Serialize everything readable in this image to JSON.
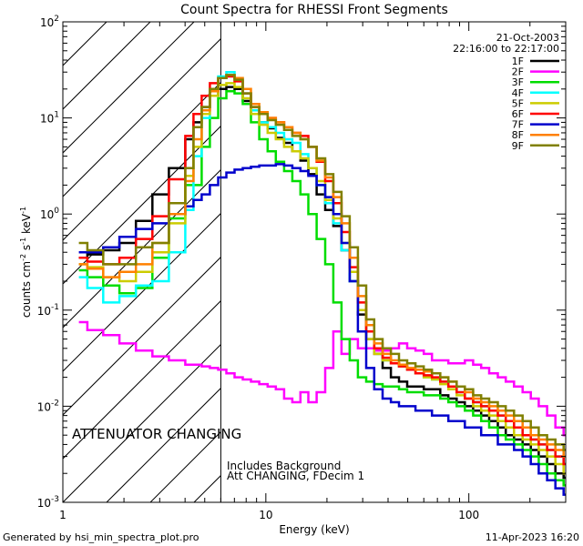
{
  "chart_data": {
    "type": "line",
    "title": "Count Spectra for RHESSI Front Segments",
    "xlabel": "Energy (keV)",
    "ylabel": {
      "base": "counts cm",
      "exp1": "-2",
      "mid": " s",
      "exp2": "-1",
      "mid2": " keV",
      "exp3": "-1"
    },
    "xscale": "log",
    "yscale": "log",
    "xlim": [
      1,
      300
    ],
    "ylim": [
      0.001,
      100
    ],
    "x_ticks": [
      {
        "value": 1,
        "label": "1"
      },
      {
        "value": 10,
        "label": "10"
      },
      {
        "value": 100,
        "label": "100"
      }
    ],
    "y_ticks": [
      {
        "value": 0.001,
        "base": "10",
        "exp": "-3"
      },
      {
        "value": 0.01,
        "base": "10",
        "exp": "-2"
      },
      {
        "value": 0.1,
        "base": "10",
        "exp": "-1"
      },
      {
        "value": 1,
        "base": "10",
        "exp": "0"
      },
      {
        "value": 10,
        "base": "10",
        "exp": "1"
      },
      {
        "value": 100,
        "base": "10",
        "exp": "2"
      }
    ],
    "date_label": "21-Oct-2003",
    "time_label": "22:16:00 to 22:17:00",
    "attenuator_label": "ATTENUATOR CHANGING",
    "attenuator_color": "#ff0000",
    "attenuator_edge_keV": 6.0,
    "hatch_region_keV": [
      1,
      6.0
    ],
    "notes": [
      "Includes Background",
      "Att CHANGING, FDecim 1"
    ],
    "footer_left": "Generated by hsi_min_spectra_plot.pro",
    "footer_right": "11-Apr-2023 16:20",
    "energy_bins": [
      1.2,
      1.32,
      1.44,
      1.58,
      1.73,
      1.9,
      2.09,
      2.29,
      2.52,
      2.76,
      3.03,
      3.33,
      3.65,
      4.01,
      4.4,
      4.83,
      5.3,
      5.82,
      6.39,
      7.01,
      7.7,
      8.45,
      9.28,
      10.2,
      11.2,
      12.3,
      13.5,
      14.8,
      16.2,
      17.8,
      19.6,
      21.5,
      23.6,
      25.9,
      28.4,
      31.2,
      34.2,
      37.6,
      41.3,
      45.3,
      49.7,
      54.6,
      60,
      65.8,
      72.3,
      79.3,
      87.1,
      95.6,
      105,
      115,
      126,
      139,
      152,
      167,
      184,
      202,
      221,
      243,
      267,
      293
    ],
    "series": [
      {
        "name": "1F",
        "color": "#000000",
        "values": [
          0.35,
          0.38,
          0.38,
          0.42,
          0.42,
          0.5,
          0.5,
          0.85,
          0.85,
          1.6,
          1.6,
          3.0,
          3.0,
          6.0,
          9.0,
          13.0,
          17.0,
          20.0,
          21.0,
          20.0,
          15.0,
          11.0,
          9.0,
          7.8,
          6.2,
          5.5,
          4.5,
          3.6,
          2.6,
          1.6,
          1.1,
          0.75,
          0.42,
          0.2,
          0.09,
          0.05,
          0.035,
          0.025,
          0.02,
          0.018,
          0.016,
          0.016,
          0.015,
          0.015,
          0.013,
          0.012,
          0.011,
          0.01,
          0.009,
          0.008,
          0.007,
          0.006,
          0.005,
          0.0045,
          0.004,
          0.0035,
          0.003,
          0.0025,
          0.002,
          0.0018
        ]
      },
      {
        "name": "2F",
        "color": "#ff00ff",
        "values": [
          0.075,
          0.062,
          0.062,
          0.055,
          0.055,
          0.045,
          0.045,
          0.038,
          0.038,
          0.033,
          0.033,
          0.03,
          0.03,
          0.027,
          0.027,
          0.026,
          0.025,
          0.024,
          0.022,
          0.02,
          0.019,
          0.018,
          0.017,
          0.016,
          0.015,
          0.012,
          0.011,
          0.014,
          0.011,
          0.014,
          0.025,
          0.06,
          0.035,
          0.05,
          0.04,
          0.04,
          0.038,
          0.038,
          0.04,
          0.045,
          0.04,
          0.038,
          0.035,
          0.03,
          0.03,
          0.028,
          0.028,
          0.03,
          0.027,
          0.025,
          0.022,
          0.02,
          0.018,
          0.016,
          0.014,
          0.012,
          0.01,
          0.008,
          0.006,
          0.005
        ]
      },
      {
        "name": "3F",
        "color": "#00dd00",
        "values": [
          0.26,
          0.22,
          0.22,
          0.18,
          0.18,
          0.15,
          0.15,
          0.17,
          0.17,
          0.35,
          0.35,
          0.9,
          0.9,
          2.0,
          2.0,
          5.0,
          10.0,
          16.0,
          19.0,
          18.0,
          14.0,
          9.0,
          6.0,
          4.5,
          3.5,
          2.8,
          2.2,
          1.6,
          1.0,
          0.55,
          0.3,
          0.12,
          0.05,
          0.03,
          0.02,
          0.018,
          0.017,
          0.016,
          0.016,
          0.015,
          0.014,
          0.014,
          0.013,
          0.013,
          0.012,
          0.011,
          0.01,
          0.009,
          0.008,
          0.007,
          0.006,
          0.005,
          0.0045,
          0.004,
          0.0035,
          0.003,
          0.0025,
          0.002,
          0.0017,
          0.0015
        ]
      },
      {
        "name": "4F",
        "color": "#00ffff",
        "values": [
          0.22,
          0.17,
          0.17,
          0.12,
          0.12,
          0.14,
          0.14,
          0.18,
          0.18,
          0.2,
          0.2,
          0.4,
          0.4,
          1.1,
          4.0,
          10.0,
          20.0,
          27.0,
          30.0,
          26.0,
          18.0,
          12.0,
          9.0,
          8.0,
          7.0,
          6.0,
          5.5,
          4.2,
          3.0,
          2.0,
          1.3,
          0.8,
          0.42,
          0.2,
          0.1,
          0.06,
          0.04,
          0.03,
          0.028,
          0.026,
          0.024,
          0.022,
          0.02,
          0.019,
          0.018,
          0.016,
          0.014,
          0.012,
          0.011,
          0.01,
          0.009,
          0.008,
          0.007,
          0.006,
          0.005,
          0.0045,
          0.004,
          0.0035,
          0.003,
          0.0025
        ]
      },
      {
        "name": "5F",
        "color": "#cccc00",
        "values": [
          0.3,
          0.28,
          0.28,
          0.22,
          0.22,
          0.2,
          0.2,
          0.25,
          0.25,
          0.4,
          0.4,
          0.8,
          0.8,
          2.5,
          5.0,
          11.0,
          17.0,
          22.0,
          23.0,
          21.0,
          16.0,
          11.0,
          8.5,
          7.0,
          6.0,
          5.0,
          4.5,
          3.8,
          3.0,
          2.2,
          1.4,
          0.9,
          0.5,
          0.25,
          0.1,
          0.05,
          0.035,
          0.03,
          0.028,
          0.026,
          0.024,
          0.022,
          0.02,
          0.019,
          0.017,
          0.015,
          0.013,
          0.012,
          0.01,
          0.009,
          0.008,
          0.007,
          0.006,
          0.005,
          0.0045,
          0.004,
          0.0035,
          0.003,
          0.0025,
          0.002
        ]
      },
      {
        "name": "6F",
        "color": "#ff0000",
        "values": [
          0.35,
          0.32,
          0.32,
          0.3,
          0.3,
          0.35,
          0.35,
          0.55,
          0.55,
          0.95,
          0.95,
          2.3,
          2.3,
          6.5,
          11.0,
          17.0,
          23.0,
          26.0,
          27.0,
          24.0,
          18.0,
          13.0,
          11.0,
          10.0,
          9.0,
          8.0,
          7.0,
          6.5,
          5.0,
          3.5,
          2.2,
          1.3,
          0.65,
          0.28,
          0.12,
          0.06,
          0.04,
          0.032,
          0.028,
          0.026,
          0.024,
          0.022,
          0.021,
          0.02,
          0.018,
          0.016,
          0.014,
          0.012,
          0.011,
          0.01,
          0.009,
          0.008,
          0.007,
          0.006,
          0.005,
          0.0045,
          0.004,
          0.0035,
          0.003,
          0.0025
        ]
      },
      {
        "name": "7F",
        "color": "#0000cc",
        "values": [
          0.4,
          0.4,
          0.4,
          0.45,
          0.45,
          0.58,
          0.58,
          0.7,
          0.7,
          0.8,
          0.8,
          1.0,
          1.0,
          1.2,
          1.4,
          1.6,
          2.0,
          2.4,
          2.7,
          2.9,
          3.0,
          3.1,
          3.2,
          3.2,
          3.3,
          3.2,
          3.0,
          2.8,
          2.5,
          2.0,
          1.5,
          1.0,
          0.5,
          0.2,
          0.06,
          0.025,
          0.015,
          0.012,
          0.011,
          0.01,
          0.01,
          0.009,
          0.009,
          0.008,
          0.008,
          0.007,
          0.007,
          0.006,
          0.006,
          0.005,
          0.005,
          0.004,
          0.004,
          0.0035,
          0.003,
          0.0025,
          0.002,
          0.0017,
          0.0014,
          0.0012
        ]
      },
      {
        "name": "8F",
        "color": "#ff8000",
        "values": [
          0.3,
          0.27,
          0.27,
          0.22,
          0.22,
          0.25,
          0.25,
          0.3,
          0.3,
          0.5,
          0.5,
          1.0,
          1.0,
          2.2,
          6.0,
          12.0,
          19.0,
          26.0,
          28.0,
          26.0,
          20.0,
          14.0,
          11.5,
          10.0,
          9.0,
          8.0,
          7.0,
          6.0,
          5.0,
          3.6,
          2.4,
          1.5,
          0.8,
          0.35,
          0.14,
          0.07,
          0.045,
          0.035,
          0.03,
          0.027,
          0.025,
          0.024,
          0.023,
          0.022,
          0.02,
          0.018,
          0.016,
          0.014,
          0.012,
          0.011,
          0.01,
          0.009,
          0.008,
          0.007,
          0.006,
          0.005,
          0.0045,
          0.004,
          0.0035,
          0.003
        ]
      },
      {
        "name": "9F",
        "color": "#808000",
        "values": [
          0.5,
          0.42,
          0.42,
          0.3,
          0.3,
          0.3,
          0.3,
          0.45,
          0.45,
          0.5,
          0.5,
          1.3,
          1.3,
          3.0,
          8.0,
          13.0,
          20.0,
          26.0,
          28.0,
          25.0,
          18.0,
          13.0,
          11.0,
          9.5,
          8.5,
          7.5,
          6.5,
          6.0,
          5.0,
          3.8,
          2.6,
          1.7,
          0.95,
          0.45,
          0.18,
          0.08,
          0.05,
          0.04,
          0.035,
          0.03,
          0.028,
          0.026,
          0.024,
          0.022,
          0.02,
          0.018,
          0.016,
          0.015,
          0.013,
          0.012,
          0.011,
          0.01,
          0.009,
          0.008,
          0.007,
          0.006,
          0.005,
          0.0045,
          0.004,
          0.0035
        ]
      }
    ]
  }
}
